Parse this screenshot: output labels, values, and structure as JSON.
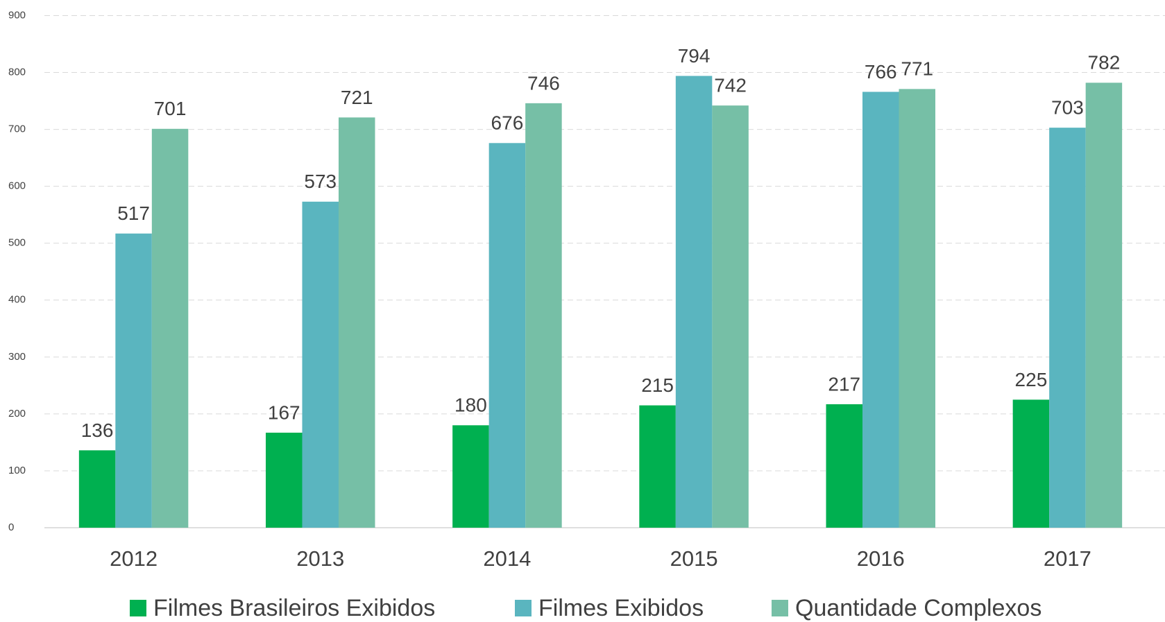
{
  "chart_data": {
    "type": "bar",
    "categories": [
      "2012",
      "2013",
      "2014",
      "2015",
      "2016",
      "2017"
    ],
    "series": [
      {
        "name": "Filmes Brasileiros Exibidos",
        "color": "#00b050",
        "values": [
          136,
          167,
          180,
          215,
          217,
          225
        ]
      },
      {
        "name": "Filmes Exibidos",
        "color": "#5ab5bf",
        "values": [
          517,
          573,
          676,
          794,
          766,
          703
        ]
      },
      {
        "name": "Quantidade Complexos",
        "color": "#76bfa6",
        "values": [
          701,
          721,
          746,
          742,
          771,
          782
        ]
      }
    ],
    "ylim": [
      0,
      900
    ],
    "yticks": [
      0,
      100,
      200,
      300,
      400,
      500,
      600,
      700,
      800,
      900
    ],
    "grid": true,
    "legend": "bottom"
  }
}
